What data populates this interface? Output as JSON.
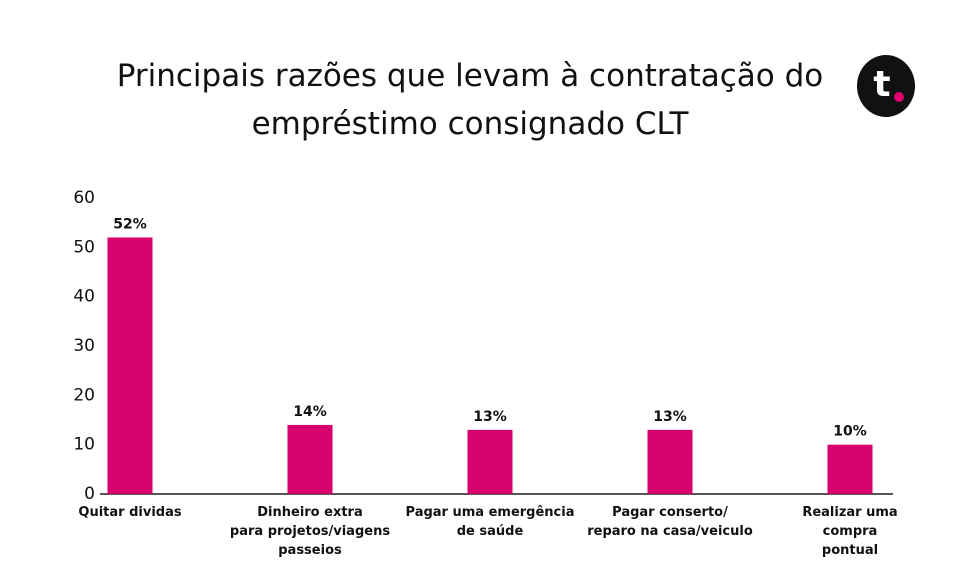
{
  "logo": "t",
  "chart_data": {
    "type": "bar",
    "title": "Principais razões que levam à contratação do\nempréstimo consignado CLT",
    "categories": [
      "Quitar dividas",
      "Dinheiro extra\npara projetos/viagens\npasseios",
      "Pagar uma emergência\nde saúde",
      "Pagar conserto/\nreparo na casa/veiculo",
      "Realizar uma\ncompra pontual"
    ],
    "values": [
      52,
      14,
      13,
      13,
      10
    ],
    "value_labels": [
      "52%",
      "14%",
      "13%",
      "13%",
      "10%"
    ],
    "color": "#d6006f",
    "ylim": [
      0,
      60
    ],
    "yticks": [
      0,
      10,
      20,
      30,
      40,
      50,
      60
    ],
    "grid": false
  }
}
